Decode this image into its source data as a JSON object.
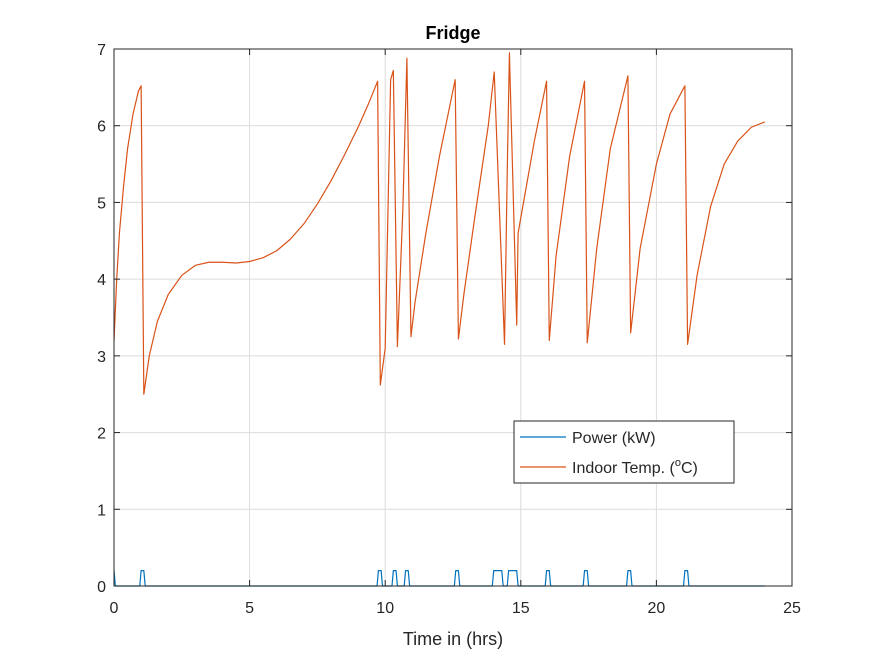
{
  "chart_data": {
    "type": "line",
    "title": "Fridge",
    "xlabel": "Time in (hrs)",
    "ylabel": "",
    "xlim": [
      0,
      25
    ],
    "ylim": [
      0,
      7
    ],
    "xticks": [
      0,
      5,
      10,
      15,
      20,
      25
    ],
    "yticks": [
      0,
      1,
      2,
      3,
      4,
      5,
      6,
      7
    ],
    "grid": true,
    "legend_position": "lower-right inside",
    "series": [
      {
        "name": "Power (kW)",
        "color": "#0072BD",
        "points": [
          [
            0,
            0.2
          ],
          [
            0.05,
            0
          ],
          [
            0.95,
            0
          ],
          [
            1.0,
            0.2
          ],
          [
            1.1,
            0.2
          ],
          [
            1.15,
            0
          ],
          [
            9.7,
            0
          ],
          [
            9.75,
            0.2
          ],
          [
            9.85,
            0.2
          ],
          [
            9.9,
            0
          ],
          [
            10.25,
            0
          ],
          [
            10.3,
            0.2
          ],
          [
            10.4,
            0.2
          ],
          [
            10.45,
            0
          ],
          [
            10.7,
            0
          ],
          [
            10.75,
            0.2
          ],
          [
            10.85,
            0.2
          ],
          [
            10.9,
            0
          ],
          [
            12.55,
            0
          ],
          [
            12.6,
            0.2
          ],
          [
            12.7,
            0.2
          ],
          [
            12.75,
            0
          ],
          [
            13.95,
            0
          ],
          [
            14.0,
            0.2
          ],
          [
            14.3,
            0.2
          ],
          [
            14.35,
            0
          ],
          [
            14.5,
            0
          ],
          [
            14.55,
            0.2
          ],
          [
            14.85,
            0.2
          ],
          [
            14.9,
            0
          ],
          [
            15.9,
            0
          ],
          [
            15.95,
            0.2
          ],
          [
            16.05,
            0.2
          ],
          [
            16.1,
            0
          ],
          [
            17.3,
            0
          ],
          [
            17.35,
            0.2
          ],
          [
            17.45,
            0.2
          ],
          [
            17.5,
            0
          ],
          [
            18.9,
            0
          ],
          [
            18.95,
            0.2
          ],
          [
            19.05,
            0.2
          ],
          [
            19.1,
            0
          ],
          [
            21.0,
            0
          ],
          [
            21.05,
            0.2
          ],
          [
            21.15,
            0.2
          ],
          [
            21.2,
            0
          ],
          [
            24.0,
            0
          ]
        ]
      },
      {
        "name": "Indoor Temp. (oC)",
        "color": "#D95319",
        "points": [
          [
            0,
            3.2
          ],
          [
            0.1,
            4.0
          ],
          [
            0.2,
            4.6
          ],
          [
            0.35,
            5.2
          ],
          [
            0.5,
            5.7
          ],
          [
            0.7,
            6.15
          ],
          [
            0.9,
            6.45
          ],
          [
            1.0,
            6.52
          ],
          [
            1.1,
            2.5
          ],
          [
            1.3,
            3.0
          ],
          [
            1.6,
            3.45
          ],
          [
            2.0,
            3.8
          ],
          [
            2.5,
            4.05
          ],
          [
            3.0,
            4.18
          ],
          [
            3.5,
            4.22
          ],
          [
            4.0,
            4.22
          ],
          [
            4.5,
            4.21
          ],
          [
            5.0,
            4.23
          ],
          [
            5.5,
            4.28
          ],
          [
            6.0,
            4.37
          ],
          [
            6.5,
            4.52
          ],
          [
            7.0,
            4.72
          ],
          [
            7.5,
            4.98
          ],
          [
            8.0,
            5.28
          ],
          [
            8.5,
            5.62
          ],
          [
            9.0,
            5.98
          ],
          [
            9.4,
            6.3
          ],
          [
            9.72,
            6.58
          ],
          [
            9.82,
            2.62
          ],
          [
            10.0,
            3.1
          ],
          [
            10.2,
            6.6
          ],
          [
            10.3,
            6.72
          ],
          [
            10.45,
            3.12
          ],
          [
            10.65,
            4.9
          ],
          [
            10.8,
            6.88
          ],
          [
            10.95,
            3.25
          ],
          [
            11.1,
            3.7
          ],
          [
            11.5,
            4.6
          ],
          [
            12.0,
            5.6
          ],
          [
            12.58,
            6.6
          ],
          [
            12.7,
            3.22
          ],
          [
            12.9,
            3.8
          ],
          [
            13.3,
            4.8
          ],
          [
            13.8,
            6.0
          ],
          [
            14.02,
            6.7
          ],
          [
            14.4,
            3.15
          ],
          [
            14.5,
            5.4
          ],
          [
            14.58,
            6.95
          ],
          [
            14.85,
            3.4
          ],
          [
            14.9,
            4.6
          ],
          [
            15.2,
            5.2
          ],
          [
            15.5,
            5.8
          ],
          [
            15.95,
            6.58
          ],
          [
            16.05,
            3.2
          ],
          [
            16.3,
            4.3
          ],
          [
            16.8,
            5.6
          ],
          [
            17.35,
            6.58
          ],
          [
            17.45,
            3.17
          ],
          [
            17.8,
            4.4
          ],
          [
            18.3,
            5.7
          ],
          [
            18.95,
            6.65
          ],
          [
            19.05,
            3.3
          ],
          [
            19.4,
            4.4
          ],
          [
            20.0,
            5.5
          ],
          [
            20.5,
            6.15
          ],
          [
            21.05,
            6.52
          ],
          [
            21.15,
            3.15
          ],
          [
            21.5,
            4.05
          ],
          [
            22.0,
            4.95
          ],
          [
            22.5,
            5.5
          ],
          [
            23.0,
            5.8
          ],
          [
            23.5,
            5.98
          ],
          [
            24.0,
            6.05
          ]
        ]
      }
    ],
    "legend_entries": {
      "power": "Power (kW)",
      "temp_prefix": "Indoor Temp. (",
      "temp_sup": "o",
      "temp_suffix": "C)"
    }
  }
}
